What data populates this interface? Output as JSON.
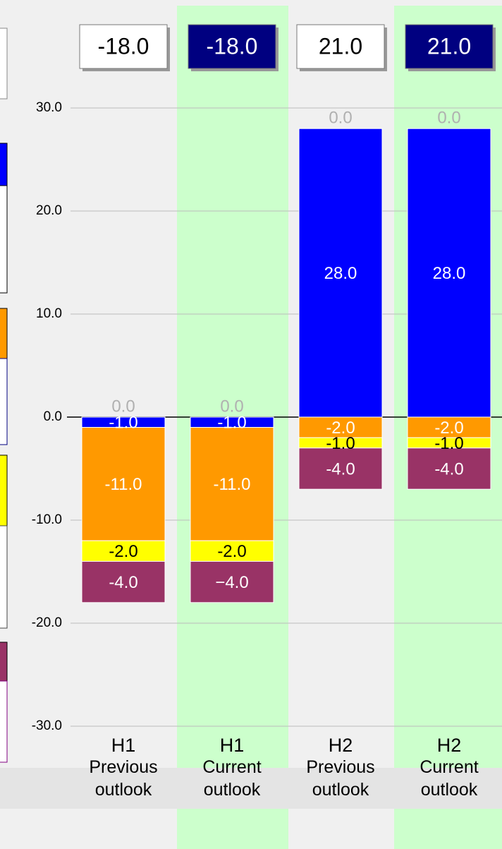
{
  "chart_data": {
    "type": "bar",
    "stacked": true,
    "categories": [
      "H1",
      "H1",
      "H2",
      "H2"
    ],
    "subcategories": [
      "Previous outlook",
      "Current outlook",
      "Previous outlook",
      "Current outlook"
    ],
    "highlight": [
      false,
      true,
      false,
      true
    ],
    "highlight_color": "#ccffcc",
    "series": [
      {
        "color": "#0000ff",
        "label_color": "#ffffff",
        "values": [
          -1,
          -1,
          28,
          28
        ],
        "value_labels": [
          "-1.0",
          "-1.0",
          "28.0",
          "28.0"
        ]
      },
      {
        "color": "#ff9900",
        "label_color": "#ffffff",
        "values": [
          -11,
          -11,
          -2,
          -2
        ],
        "value_labels": [
          "-11.0",
          "-11.0",
          "-2.0",
          "-2.0"
        ]
      },
      {
        "color": "#ffff00",
        "label_color": "#000000",
        "values": [
          -2,
          -2,
          -1,
          -1
        ],
        "value_labels": [
          "-2.0",
          "-2.0",
          "-1.0",
          "-1.0"
        ]
      },
      {
        "color": "#993366",
        "label_color": "#ffffff",
        "values": [
          -4,
          -4,
          -4,
          -4
        ],
        "value_labels": [
          "-4.0",
          "−4.0",
          "-4.0",
          "-4.0"
        ]
      },
      {
        "color": "#b0b0b0",
        "label_color": "#b0b0b0",
        "values": [
          0,
          0,
          0,
          0
        ],
        "value_labels": [
          "0.0",
          "0.0",
          "0.0",
          "0.0"
        ]
      }
    ],
    "totals": [
      -18,
      -18,
      21,
      21
    ],
    "total_labels": [
      "-18.0",
      "-18.0",
      "21.0",
      "21.0"
    ],
    "total_box_colors": [
      "#ffffff",
      "#000080",
      "#ffffff",
      "#000080"
    ],
    "ylim": [
      -30,
      30
    ],
    "yticks": [
      {
        "value": -30,
        "label": "-30.0"
      },
      {
        "value": -20,
        "label": "-20.0"
      },
      {
        "value": -10,
        "label": "-10.0"
      },
      {
        "value": 0,
        "label": "0.0"
      },
      {
        "value": 10,
        "label": "10.0"
      },
      {
        "value": 20,
        "label": "20.0"
      },
      {
        "value": 30,
        "label": "30.0"
      }
    ],
    "grid": true
  }
}
